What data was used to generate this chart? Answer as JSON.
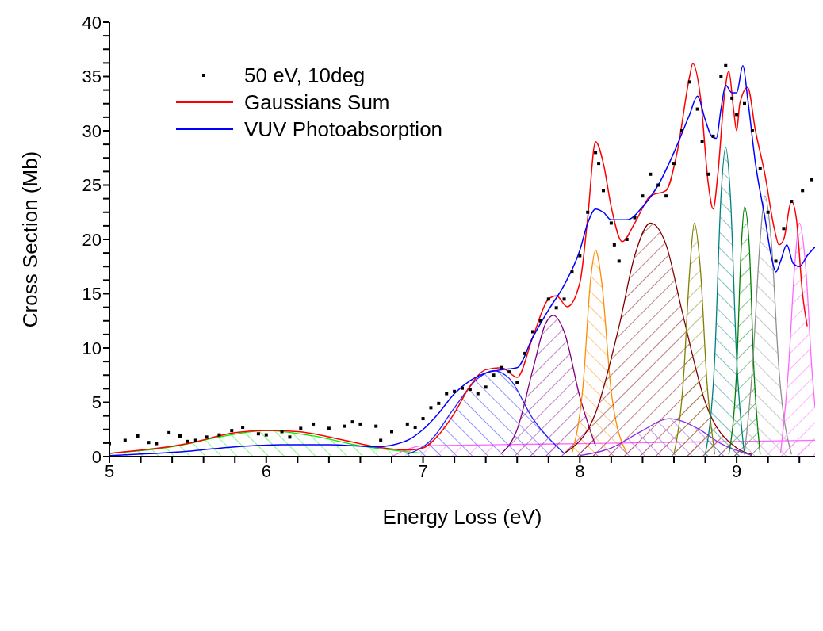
{
  "chart_data": {
    "type": "line",
    "xlabel": "Energy Loss (eV)",
    "ylabel": "Cross Section (Mb)",
    "xlim": [
      5,
      9.5
    ],
    "ylim": [
      0,
      40
    ],
    "xticks": [
      5,
      {
        "value": 5.2,
        "label": null
      },
      {
        "value": 5.4,
        "label": null
      },
      {
        "value": 5.6,
        "label": null
      },
      {
        "value": 5.8,
        "label": null
      },
      6,
      {
        "value": 6.2,
        "label": null
      },
      {
        "value": 6.4,
        "label": null
      },
      {
        "value": 6.6,
        "label": null
      },
      {
        "value": 6.8,
        "label": null
      },
      7,
      {
        "value": 7.2,
        "label": null
      },
      {
        "value": 7.4,
        "label": null
      },
      {
        "value": 7.6,
        "label": null
      },
      {
        "value": 7.8,
        "label": null
      },
      8,
      {
        "value": 8.2,
        "label": null
      },
      {
        "value": 8.4,
        "label": null
      },
      {
        "value": 8.6,
        "label": null
      },
      {
        "value": 8.8,
        "label": null
      },
      9,
      {
        "value": 9.2,
        "label": null
      },
      {
        "value": 9.4,
        "label": null
      }
    ],
    "yticks": [
      0,
      {
        "value": 1.25,
        "label": null
      },
      {
        "value": 2.5,
        "label": null
      },
      {
        "value": 3.75,
        "label": null
      },
      5,
      {
        "value": 6.25,
        "label": null
      },
      {
        "value": 7.5,
        "label": null
      },
      {
        "value": 8.75,
        "label": null
      },
      10,
      {
        "value": 11.25,
        "label": null
      },
      {
        "value": 12.5,
        "label": null
      },
      {
        "value": 13.75,
        "label": null
      },
      15,
      {
        "value": 16.25,
        "label": null
      },
      {
        "value": 17.5,
        "label": null
      },
      {
        "value": 18.75,
        "label": null
      },
      20,
      {
        "value": 21.25,
        "label": null
      },
      {
        "value": 22.5,
        "label": null
      },
      {
        "value": 23.75,
        "label": null
      },
      25,
      {
        "value": 26.25,
        "label": null
      },
      {
        "value": 27.5,
        "label": null
      },
      {
        "value": 28.75,
        "label": null
      },
      30,
      {
        "value": 31.25,
        "label": null
      },
      {
        "value": 32.5,
        "label": null
      },
      {
        "value": 33.75,
        "label": null
      },
      35,
      {
        "value": 36.25,
        "label": null
      },
      {
        "value": 37.5,
        "label": null
      },
      {
        "value": 38.75,
        "label": null
      },
      40
    ],
    "legend": "top left",
    "series": [
      {
        "type": "area",
        "color": "#00ee00",
        "x": [
          5.0,
          5.4,
          5.7,
          6.0,
          6.3,
          6.6,
          7.0
        ],
        "values": [
          0.3,
          0.9,
          1.8,
          2.4,
          1.9,
          1.0,
          0.3
        ]
      },
      {
        "type": "area",
        "color": "#ff66ff",
        "x": [
          6.8,
          7.0,
          7.5,
          8.0,
          8.5,
          9.0,
          9.5
        ],
        "values": [
          0.0,
          1.0,
          1.1,
          1.2,
          1.3,
          1.4,
          1.5
        ]
      },
      {
        "type": "area",
        "color": "#2222ff",
        "x": [
          6.9,
          7.05,
          7.2,
          7.35,
          7.45,
          7.55,
          7.7,
          7.9
        ],
        "values": [
          0.2,
          1.5,
          4.5,
          7.2,
          7.9,
          7.2,
          3.5,
          0.3
        ]
      },
      {
        "type": "area",
        "color": "#800080",
        "x": [
          7.5,
          7.6,
          7.7,
          7.78,
          7.83,
          7.9,
          8.0,
          8.1
        ],
        "values": [
          0.3,
          2.5,
          8.0,
          12.2,
          13.0,
          11.5,
          5.5,
          1.0
        ]
      },
      {
        "type": "area",
        "color": "#ff8c00",
        "x": [
          7.95,
          8.02,
          8.07,
          8.1,
          8.14,
          8.2,
          8.3
        ],
        "values": [
          0.3,
          6.5,
          16.5,
          19.0,
          16.0,
          6.0,
          0.3
        ]
      },
      {
        "type": "area",
        "color": "#800000",
        "x": [
          7.9,
          8.1,
          8.25,
          8.35,
          8.45,
          8.55,
          8.65,
          8.8,
          9.0,
          9.1
        ],
        "values": [
          0.3,
          4.0,
          12.0,
          18.5,
          21.5,
          19.5,
          13.5,
          5.0,
          0.8,
          0.2
        ]
      },
      {
        "type": "area",
        "color": "#8a2be2",
        "x": [
          8.0,
          8.2,
          8.4,
          8.57,
          8.75,
          8.9,
          9.1
        ],
        "values": [
          0.1,
          0.8,
          2.4,
          3.5,
          2.6,
          1.2,
          0.1
        ]
      },
      {
        "type": "area",
        "color": "#808000",
        "x": [
          8.6,
          8.66,
          8.7,
          8.73,
          8.77,
          8.81,
          8.86
        ],
        "values": [
          0.2,
          7.0,
          17.0,
          21.5,
          17.0,
          7.0,
          0.2
        ]
      },
      {
        "type": "area",
        "color": "#008080",
        "x": [
          8.8,
          8.86,
          8.9,
          8.93,
          8.96,
          9.0,
          9.05
        ],
        "values": [
          0.2,
          9.0,
          24.0,
          28.5,
          24.0,
          9.0,
          0.2
        ]
      },
      {
        "type": "area",
        "color": "#008000",
        "x": [
          8.95,
          9.0,
          9.03,
          9.05,
          9.08,
          9.11,
          9.15
        ],
        "values": [
          0.2,
          8.0,
          19.5,
          23.0,
          19.5,
          8.0,
          0.2
        ]
      },
      {
        "type": "area",
        "color": "#909090",
        "x": [
          9.05,
          9.1,
          9.15,
          9.18,
          9.22,
          9.27,
          9.35
        ],
        "values": [
          0.2,
          8.0,
          20.0,
          24.0,
          20.0,
          8.0,
          0.2
        ]
      },
      {
        "type": "area",
        "color": "#ff66ff",
        "x": [
          9.28,
          9.33,
          9.37,
          9.4,
          9.44,
          9.48,
          9.5
        ],
        "values": [
          0.3,
          8.0,
          17.5,
          21.5,
          17.5,
          8.0,
          4.5
        ]
      },
      {
        "type": "scatter",
        "name": "50 eV, 10deg",
        "color": "#000000",
        "marker": "square",
        "x": [
          5.0,
          5.1,
          5.18,
          5.25,
          5.3,
          5.38,
          5.45,
          5.5,
          5.55,
          5.62,
          5.7,
          5.78,
          5.85,
          5.95,
          6.0,
          6.1,
          6.15,
          6.22,
          6.3,
          6.4,
          6.5,
          6.55,
          6.6,
          6.7,
          6.73,
          6.8,
          6.9,
          6.95,
          7.0,
          7.05,
          7.1,
          7.15,
          7.2,
          7.25,
          7.3,
          7.35,
          7.4,
          7.45,
          7.5,
          7.55,
          7.6,
          7.65,
          7.7,
          7.75,
          7.8,
          7.85,
          7.9,
          7.95,
          8.0,
          8.05,
          8.1,
          8.12,
          8.15,
          8.2,
          8.22,
          8.25,
          8.3,
          8.35,
          8.4,
          8.45,
          8.5,
          8.55,
          8.6,
          8.65,
          8.7,
          8.75,
          8.78,
          8.82,
          8.85,
          8.9,
          8.93,
          8.97,
          9.0,
          9.05,
          9.1,
          9.15,
          9.2,
          9.25,
          9.3,
          9.35,
          9.42,
          9.48
        ],
        "values": [
          1.2,
          1.5,
          1.9,
          1.3,
          1.2,
          2.2,
          1.9,
          1.4,
          1.5,
          1.8,
          2.0,
          2.4,
          2.7,
          2.1,
          2.0,
          2.3,
          1.8,
          2.6,
          3.0,
          2.6,
          2.8,
          3.2,
          3.0,
          2.8,
          1.5,
          2.3,
          3.0,
          2.7,
          3.5,
          4.5,
          4.9,
          5.8,
          6.0,
          6.3,
          6.2,
          5.8,
          6.4,
          7.5,
          8.2,
          7.8,
          6.8,
          9.5,
          11.5,
          12.5,
          14.5,
          13.7,
          14.5,
          17.0,
          18.5,
          22.5,
          28.0,
          27.0,
          24.5,
          21.5,
          19.5,
          18.0,
          20.0,
          22.0,
          24.0,
          26.0,
          25.0,
          24.0,
          27.0,
          30.0,
          34.5,
          32.0,
          29.0,
          26.0,
          29.5,
          35.0,
          36.0,
          33.0,
          31.5,
          32.5,
          30.0,
          26.5,
          22.5,
          18.0,
          21.0,
          23.5,
          24.5,
          25.5
        ]
      },
      {
        "name": "Gaussians Sum",
        "color": "#ff0000",
        "x": [
          5.0,
          5.5,
          5.8,
          6.0,
          6.2,
          6.5,
          6.7,
          6.9,
          7.0,
          7.1,
          7.2,
          7.3,
          7.4,
          7.5,
          7.6,
          7.7,
          7.8,
          7.85,
          7.92,
          8.0,
          8.05,
          8.1,
          8.15,
          8.2,
          8.27,
          8.35,
          8.45,
          8.55,
          8.62,
          8.7,
          8.72,
          8.77,
          8.82,
          8.85,
          8.88,
          8.92,
          8.95,
          8.98,
          9.0,
          9.02,
          9.07,
          9.12,
          9.18,
          9.24,
          9.27,
          9.3,
          9.35,
          9.38,
          9.42,
          9.45
        ],
        "values": [
          0.3,
          1.2,
          2.2,
          2.4,
          2.3,
          1.5,
          0.9,
          0.6,
          0.8,
          2.0,
          4.0,
          6.5,
          8.0,
          8.2,
          7.3,
          11.0,
          14.5,
          14.8,
          13.8,
          16.0,
          22.0,
          29.0,
          27.0,
          23.0,
          19.8,
          21.5,
          24.0,
          24.5,
          28.0,
          35.0,
          36.2,
          33.0,
          25.0,
          22.8,
          26.0,
          33.0,
          35.5,
          32.0,
          30.0,
          32.5,
          34.0,
          30.0,
          26.0,
          21.0,
          19.5,
          20.0,
          23.5,
          22.0,
          15.0,
          12.0
        ]
      },
      {
        "name": "VUV Photoabsorption",
        "color": "#0000ff",
        "x": [
          5.0,
          5.5,
          5.8,
          6.1,
          6.4,
          6.7,
          6.9,
          7.0,
          7.1,
          7.2,
          7.3,
          7.4,
          7.5,
          7.6,
          7.7,
          7.8,
          7.9,
          8.0,
          8.05,
          8.1,
          8.15,
          8.2,
          8.3,
          8.4,
          8.5,
          8.6,
          8.7,
          8.75,
          8.8,
          8.84,
          8.87,
          8.9,
          8.93,
          8.97,
          9.0,
          9.04,
          9.07,
          9.12,
          9.18,
          9.22,
          9.25,
          9.28,
          9.32,
          9.36,
          9.4,
          9.45,
          9.5
        ],
        "values": [
          0.1,
          0.5,
          0.9,
          1.1,
          1.1,
          0.9,
          1.5,
          2.5,
          4.0,
          5.8,
          7.0,
          7.7,
          8.0,
          8.2,
          11.0,
          13.5,
          15.8,
          19.0,
          21.5,
          22.8,
          22.5,
          21.8,
          21.8,
          23.0,
          25.0,
          28.0,
          31.5,
          33.2,
          31.0,
          29.5,
          29.3,
          32.0,
          34.2,
          33.5,
          33.5,
          36.0,
          33.0,
          27.0,
          22.0,
          18.5,
          17.0,
          18.0,
          19.5,
          17.8,
          17.5,
          18.5,
          19.3
        ]
      }
    ]
  }
}
